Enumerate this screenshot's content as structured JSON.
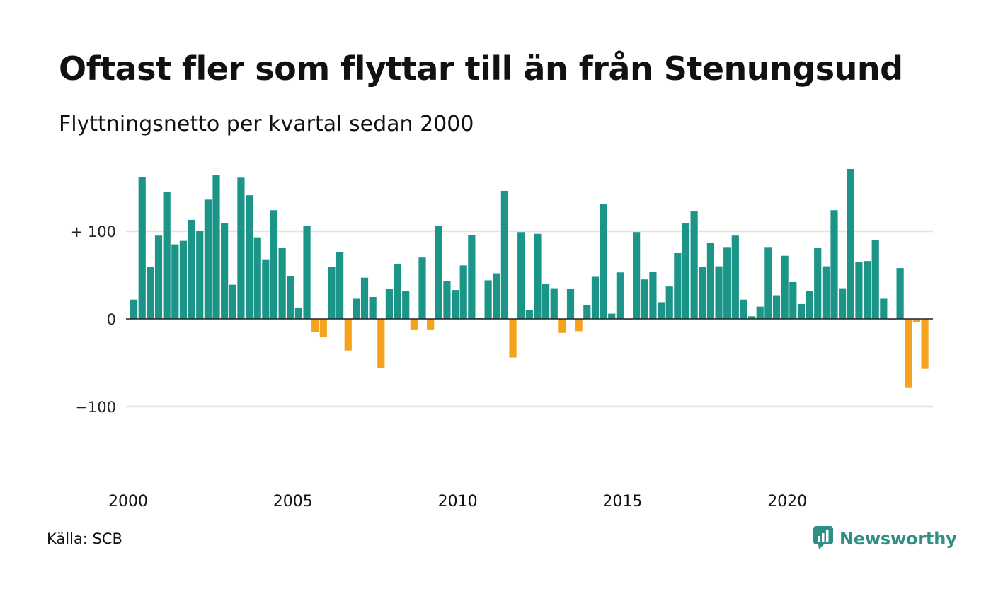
{
  "title": "Oftast fler som flyttar till än från Stenungsund",
  "subtitle": "Flyttningsnetto per kvartal sedan 2000",
  "source": "Källa: SCB",
  "brand": {
    "name": "Newsworthy",
    "icon": "newsworthy-logo-icon",
    "color": "#2f8f86"
  },
  "colors": {
    "positive": "#1a9588",
    "negative": "#f5a21c",
    "grid": "#e3e3e3",
    "zero_line": "#222222"
  },
  "chart_data": {
    "type": "bar",
    "title": "",
    "xlabel": "",
    "ylabel": "",
    "ylim": [
      -160,
      175
    ],
    "xlim": [
      2000,
      2024.75
    ],
    "grid": true,
    "legend": "none",
    "y_ticks": [
      {
        "value": 100,
        "label": "+ 100"
      },
      {
        "value": 0,
        "label": "0"
      },
      {
        "value": -100,
        "label": "−100"
      }
    ],
    "x_ticks": [
      {
        "value": 2000,
        "label": "2000"
      },
      {
        "value": 2005,
        "label": "2005"
      },
      {
        "value": 2010,
        "label": "2010"
      },
      {
        "value": 2015,
        "label": "2015"
      },
      {
        "value": 2020,
        "label": "2020"
      }
    ],
    "start": "2000 Q1",
    "periods_per_year": 4,
    "values": [
      22,
      162,
      59,
      95,
      145,
      85,
      89,
      113,
      100,
      136,
      164,
      109,
      39,
      161,
      141,
      93,
      68,
      124,
      81,
      49,
      13,
      106,
      -15,
      -21,
      59,
      76,
      -36,
      23,
      47,
      25,
      -56,
      34,
      63,
      32,
      -12,
      70,
      -12,
      106,
      43,
      33,
      61,
      96,
      0,
      44,
      52,
      146,
      -44,
      99,
      10,
      97,
      40,
      35,
      -16,
      34,
      -14,
      16,
      48,
      131,
      6,
      53,
      -1,
      99,
      45,
      54,
      19,
      37,
      75,
      109,
      123,
      59,
      87,
      60,
      82,
      95,
      22,
      3,
      14,
      82,
      27,
      72,
      42,
      17,
      32,
      81,
      60,
      124,
      35,
      171,
      65,
      66,
      90,
      23,
      -1,
      58,
      -78,
      -4,
      -57
    ]
  }
}
